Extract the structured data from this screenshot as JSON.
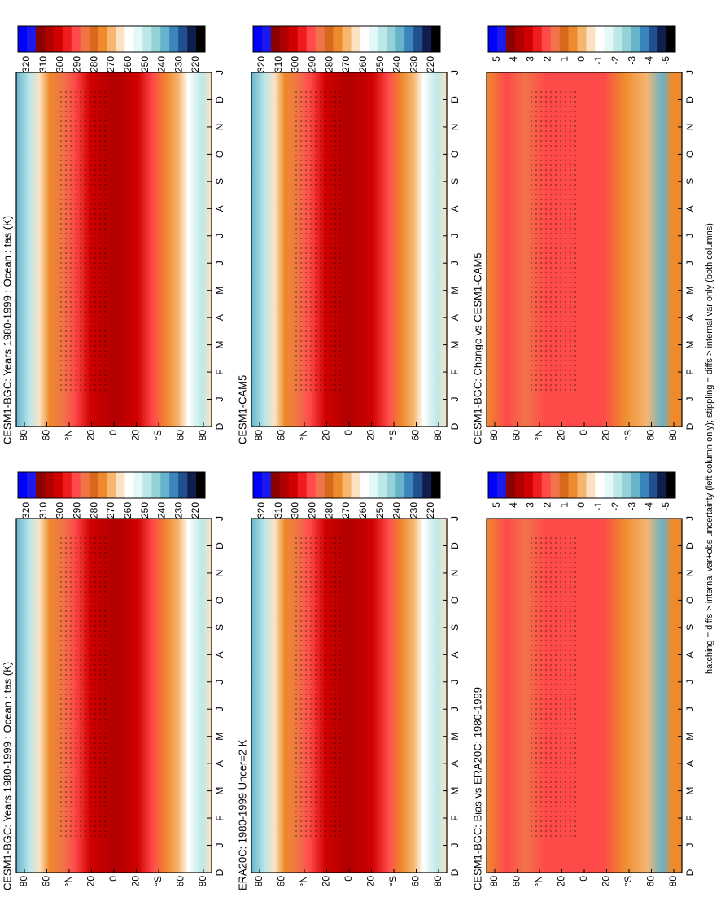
{
  "panels": [
    {
      "title": "CESM1-BGC: Years 1980-1999 : Ocean : tas (K)",
      "colorbar": {
        "labels": [
          "320",
          "310",
          "300",
          "290",
          "280",
          "270",
          "260",
          "250",
          "240",
          "230",
          "220"
        ],
        "colors": [
          "#0000ff",
          "#1a1aee",
          "#8b0000",
          "#b00000",
          "#d00000",
          "#ee1c1c",
          "#ff4a4a",
          "#f07448",
          "#d8681c",
          "#ee8a2c",
          "#f6b670",
          "#fce2c2",
          "#ffffff",
          "#e4f8f8",
          "#bde8ea",
          "#94d2d8",
          "#66b4cc",
          "#3a86bc",
          "#22508e",
          "#101e4e",
          "#000000"
        ]
      }
    },
    {
      "title": "CESM1-BGC: Years 1980-1999 : Ocean : tas (K)",
      "colorbar": {
        "labels": [
          "320",
          "310",
          "300",
          "290",
          "280",
          "270",
          "260",
          "250",
          "240",
          "230",
          "220"
        ],
        "colors": [
          "#0000ff",
          "#1a1aee",
          "#8b0000",
          "#b00000",
          "#d00000",
          "#ee1c1c",
          "#ff4a4a",
          "#f07448",
          "#d8681c",
          "#ee8a2c",
          "#f6b670",
          "#fce2c2",
          "#ffffff",
          "#e4f8f8",
          "#bde8ea",
          "#94d2d8",
          "#66b4cc",
          "#3a86bc",
          "#22508e",
          "#101e4e",
          "#000000"
        ]
      }
    },
    {
      "title": "ERA20C: 1980-1999 Uncer=2 K",
      "colorbar": {
        "labels": [
          "320",
          "310",
          "300",
          "290",
          "280",
          "270",
          "260",
          "250",
          "240",
          "230",
          "220"
        ],
        "colors": [
          "#0000ff",
          "#1a1aee",
          "#8b0000",
          "#b00000",
          "#d00000",
          "#ee1c1c",
          "#ff4a4a",
          "#f07448",
          "#d8681c",
          "#ee8a2c",
          "#f6b670",
          "#fce2c2",
          "#ffffff",
          "#e4f8f8",
          "#bde8ea",
          "#94d2d8",
          "#66b4cc",
          "#3a86bc",
          "#22508e",
          "#101e4e",
          "#000000"
        ]
      }
    },
    {
      "title": "CESM1-CAM5",
      "colorbar": {
        "labels": [
          "320",
          "310",
          "300",
          "290",
          "280",
          "270",
          "260",
          "250",
          "240",
          "230",
          "220"
        ],
        "colors": [
          "#0000ff",
          "#1a1aee",
          "#8b0000",
          "#b00000",
          "#d00000",
          "#ee1c1c",
          "#ff4a4a",
          "#f07448",
          "#d8681c",
          "#ee8a2c",
          "#f6b670",
          "#fce2c2",
          "#ffffff",
          "#e4f8f8",
          "#bde8ea",
          "#94d2d8",
          "#66b4cc",
          "#3a86bc",
          "#22508e",
          "#101e4e",
          "#000000"
        ]
      }
    },
    {
      "title": "CESM1-BGC: Bias vs ERA20C: 1980-1999",
      "colorbar": {
        "labels": [
          "5",
          "4",
          "3",
          "2",
          "1",
          "0",
          "-1",
          "-2",
          "-3",
          "-4",
          "-5"
        ],
        "colors": [
          "#0000ff",
          "#1a1aee",
          "#8b0000",
          "#b00000",
          "#d00000",
          "#ee1c1c",
          "#ff4a4a",
          "#f07448",
          "#d8681c",
          "#ee8a2c",
          "#f6b670",
          "#fce2c2",
          "#ffffff",
          "#e4f8f8",
          "#bde8ea",
          "#94d2d8",
          "#66b4cc",
          "#3a86bc",
          "#22508e",
          "#101e4e",
          "#000000"
        ]
      }
    },
    {
      "title": "CESM1-BGC: Change vs CESM1-CAM5",
      "colorbar": {
        "labels": [
          "5",
          "4",
          "3",
          "2",
          "1",
          "0",
          "-1",
          "-2",
          "-3",
          "-4",
          "-5"
        ],
        "colors": [
          "#0000ff",
          "#1a1aee",
          "#8b0000",
          "#b00000",
          "#d00000",
          "#ee1c1c",
          "#ff4a4a",
          "#f07448",
          "#d8681c",
          "#ee8a2c",
          "#f6b670",
          "#fce2c2",
          "#ffffff",
          "#e4f8f8",
          "#bde8ea",
          "#94d2d8",
          "#66b4cc",
          "#3a86bc",
          "#22508e",
          "#101e4e",
          "#000000"
        ]
      }
    }
  ],
  "months": [
    "D",
    "J",
    "F",
    "M",
    "A",
    "M",
    "J",
    "J",
    "A",
    "S",
    "O",
    "N",
    "D",
    "J"
  ],
  "latitudes": [
    "80",
    "60",
    "°N",
    "20",
    "0",
    "20",
    "°S",
    "60",
    "80"
  ],
  "footer": "hatching = diffs > internal var+obs uncertainty (left column only); stippling = diffs > internal var only (both columns)"
}
